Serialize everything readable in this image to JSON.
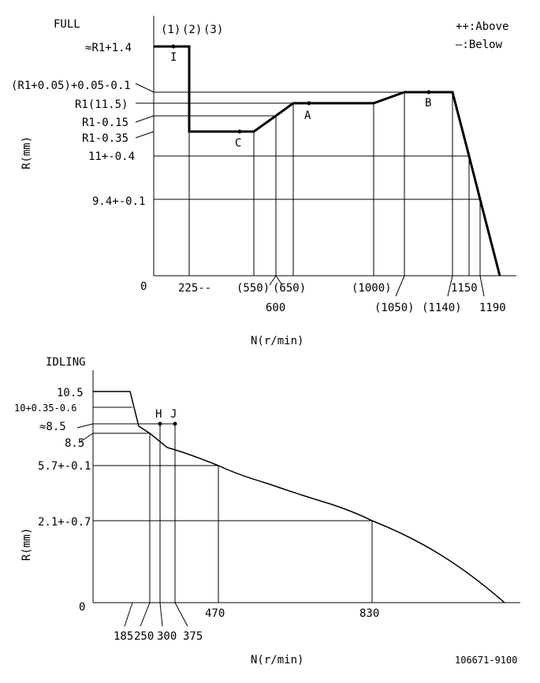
{
  "full": {
    "title": "FULL",
    "notes": [
      "(1)",
      "(2)",
      "(3)"
    ],
    "legend": {
      "above": "++:Above",
      "below": "—:Below"
    },
    "y_axis_label": "R(mm)",
    "x_axis_label": "N(r/min)",
    "origin": "0",
    "y_ticks": [
      "≈R1+1.4",
      "(R1+0.05)+0.05-0.1",
      "R1(11.5)",
      "R1-0.15",
      "R1-0.35",
      "11+-0.4",
      "9.4+-0.1"
    ],
    "x_ticks": [
      "225--",
      "(550)",
      "(650)",
      "600",
      "(1000)",
      "(1050)",
      "(1140)",
      "1150",
      "1190"
    ],
    "points": [
      "I",
      "C",
      "A",
      "B"
    ]
  },
  "idling": {
    "title": "IDLING",
    "y_axis_label": "R(mm)",
    "x_axis_label": "N(r/min)",
    "origin": "0",
    "y_ticks": [
      "10.5",
      "10+0.35-0.6",
      "≈8.5",
      "8.5",
      "5.7+-0.1",
      "2.1+-0.7"
    ],
    "x_ticks_top": [
      "470",
      "830"
    ],
    "x_ticks_bottom": [
      "185",
      "250",
      "300",
      "375"
    ],
    "points": [
      "H",
      "J"
    ]
  },
  "code": "106671-9100"
}
